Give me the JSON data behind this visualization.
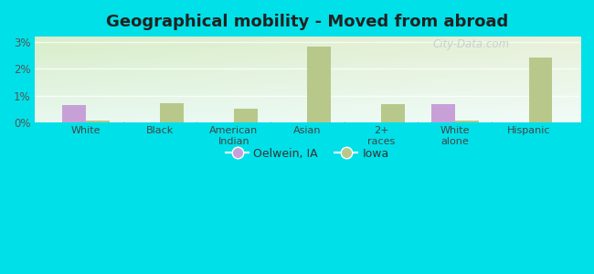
{
  "title": "Geographical mobility - Moved from abroad",
  "categories": [
    "White",
    "Black",
    "American\nIndian",
    "Asian",
    "2+\nraces",
    "White\nalone",
    "Hispanic"
  ],
  "oelwein_values": [
    0.65,
    0.0,
    0.0,
    0.0,
    0.0,
    0.68,
    0.0
  ],
  "iowa_values": [
    0.09,
    0.73,
    0.52,
    2.82,
    0.68,
    0.09,
    2.42
  ],
  "oelwein_color": "#c8a0d8",
  "iowa_color": "#b8c88a",
  "ylim": [
    0,
    3.2
  ],
  "yticks": [
    0,
    1,
    2,
    3
  ],
  "ytick_labels": [
    "0%",
    "1%",
    "2%",
    "3%"
  ],
  "outer_bg": "#00e0e8",
  "bar_width": 0.32,
  "legend_oelwein": "Oelwein, IA",
  "legend_iowa": "Iowa",
  "title_fontsize": 13,
  "watermark": "City-Data.com"
}
